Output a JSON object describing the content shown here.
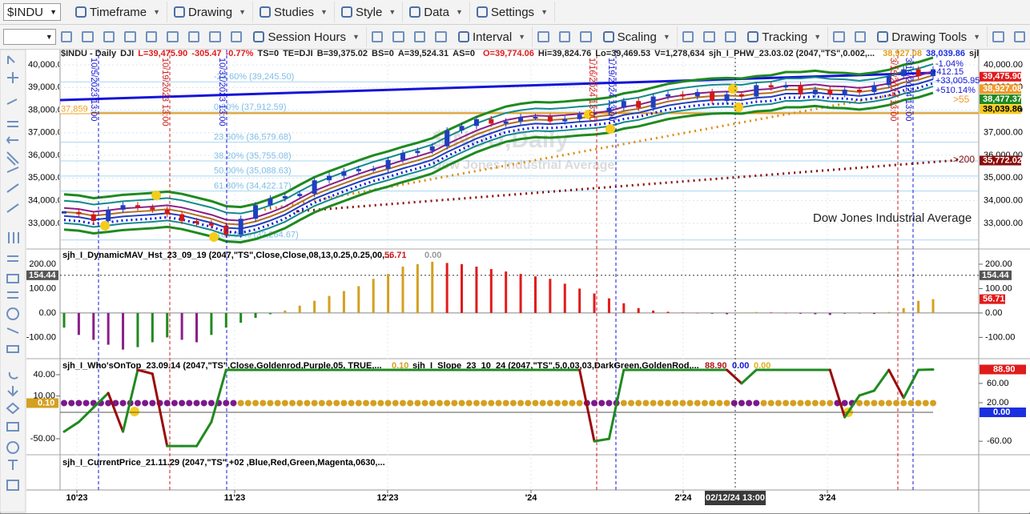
{
  "toolbar": {
    "symbol": "$INDU",
    "menu": [
      "Timeframe",
      "Drawing",
      "Studies",
      "Style",
      "Data",
      "Settings"
    ],
    "tools": [
      "Session Hours",
      "Interval",
      "Scaling",
      "Tracking",
      "Drawing Tools"
    ]
  },
  "header": {
    "title": "$INDU - Daily",
    "exchange": "DJI",
    "last": "L=39,475.90",
    "change": "-305.47",
    "change_pct": "-0.77%",
    "fields": [
      "TS=0",
      "TE=DJI",
      "B=39,375.02",
      "BS=0",
      "A=39,524.31",
      "AS=0"
    ],
    "open": "O=39,774.06",
    "fields2": [
      "Hi=39,824.76",
      "Lo=39,469.53",
      "V=1,278,634",
      "sjh_I_PHW_23.03.02 (2047,\"TS\",0.002,..."
    ],
    "study_values": [
      "38,927.08",
      "38,039.86"
    ],
    "more": "sjh_..."
  },
  "price": {
    "ylim": [
      31900,
      40670
    ],
    "yticks": [
      {
        "value": 33000,
        "label": "33,000.00"
      },
      {
        "value": 34000,
        "label": "34,000.00"
      },
      {
        "value": 35000,
        "label": "35,000.00"
      },
      {
        "value": 36000,
        "label": "36,000.00"
      },
      {
        "value": 37000,
        "label": "37,000.00"
      },
      {
        "value": 38000,
        "label": "38,000.00"
      },
      {
        "value": 39000,
        "label": "39,000.00"
      },
      {
        "value": 40000,
        "label": "40,000.00"
      }
    ],
    "closes": [
      33500,
      33400,
      33100,
      33600,
      33800,
      33700,
      33600,
      33400,
      33100,
      33000,
      32900,
      32500,
      33200,
      33800,
      34100,
      34200,
      34300,
      34900,
      35100,
      35300,
      35400,
      35400,
      35800,
      36100,
      36200,
      36400,
      37100,
      37300,
      37600,
      37400,
      37500,
      37700,
      37700,
      37500,
      37600,
      37800,
      37900,
      38100,
      38400,
      38100,
      38600,
      38700,
      38600,
      38800,
      38400,
      38700,
      38600,
      39100,
      39000,
      39100,
      38700,
      38900,
      38700,
      38900,
      38800,
      39100,
      39500,
      39800,
      39500,
      39800
    ],
    "level": {
      "value": 37859,
      "label": "37,859"
    },
    "fib": [
      {
        "value": 39245.5,
        "label": "-23.60% (39,245.50)"
      },
      {
        "value": 37912.59,
        "label": "0.00% (37,912.59)"
      },
      {
        "value": 36579.68,
        "label": "23.60% (36,579.68)"
      },
      {
        "value": 35755.08,
        "label": "38.20% (35,755.08)"
      },
      {
        "value": 35088.63,
        "label": "50.00% (35,088.63)"
      },
      {
        "value": 34422.17,
        "label": "61.80% (34,422.17)"
      },
      {
        "value": 32264.67,
        "label": "100.00% (32,264.67)"
      }
    ],
    "tags": [
      {
        "value": 39475.9,
        "label": "39,475.90",
        "color": "#e01b1b"
      },
      {
        "value": 38927.08,
        "label": "38,927.08",
        "color": "#f09a2a"
      },
      {
        "value": 38477.37,
        "label": "38,477.37",
        "color": "#1f8a1f"
      },
      {
        "value": 38039.86,
        "label": "38,039.86",
        "color": "#f5cc1c"
      },
      {
        "value": 35772.02,
        "label": "35,772.02",
        "color": "#8b0a0a"
      }
    ],
    "notes": [
      "-1.04%",
      "+412.15",
      "+33,005.95",
      "+510.14%",
      ">55",
      ">200"
    ],
    "markers": [
      "10/5/2023 13:00",
      "10/19/2023 13:00",
      "10/31/2023 13:00",
      "1/16/2024 13:00",
      "1/19/2024 13:00",
      "3/15/2024 13:00",
      "3/19/2024 13:00"
    ],
    "watermark": "$INDU,Daily",
    "watermark_sub": "Dow Jones Industrial Average",
    "caption": "Dow Jones Industrial Average"
  },
  "histogram": {
    "title": "sjh_I_DynamicMAV_Hst_23_09_19 (2047,\"TS\",Close,Close,08,13,0.25,0.25,00,...",
    "title_values": [
      "56.71",
      "0.00"
    ],
    "ylim": [
      -184,
      259
    ],
    "yticks": [
      {
        "value": -100,
        "label": "-100.00"
      },
      {
        "value": 0,
        "label": "0.00"
      },
      {
        "value": 100,
        "label": "100.00"
      },
      {
        "value": 200,
        "label": "200.00"
      }
    ],
    "values": [
      -60,
      -90,
      -110,
      -130,
      -150,
      -140,
      -120,
      -100,
      -110,
      -120,
      -90,
      -60,
      -40,
      -20,
      -5,
      10,
      30,
      50,
      70,
      90,
      110,
      140,
      160,
      190,
      200,
      210,
      205,
      200,
      190,
      180,
      170,
      160,
      150,
      140,
      120,
      100,
      80,
      60,
      40,
      20,
      10,
      5,
      2,
      0,
      -3,
      -5,
      2,
      4,
      2,
      0,
      -3,
      -5,
      -8,
      -3,
      -2,
      -4,
      4,
      20,
      50,
      56.71
    ],
    "level": {
      "value": 154.44,
      "label": "154.44"
    },
    "last": {
      "value": 56.71,
      "label": "56.71"
    }
  },
  "slope": {
    "who_title": "sjh_I_Who'sOnTop_23.09.14 (2047,\"TS\",Close,Goldenrod,Purple,05, TRUE,...",
    "who_value": "0.10",
    "title": "sjh_I_Slope_23_10_24 (2047,\"TS\",5,0,03,03,DarkGreen,GoldenRod,...",
    "title_values": [
      "88.90",
      "0.00",
      "0.00"
    ],
    "ylim": [
      -88,
      108
    ],
    "yticks": [
      {
        "value": 60,
        "label": "60.00"
      },
      {
        "value": 20,
        "label": "20.00"
      },
      {
        "value": -60,
        "label": "-60.00"
      }
    ],
    "left_ylim": [
      -72.5,
      60.25
    ],
    "left_yticks": [
      {
        "value": 40,
        "label": "40.00"
      },
      {
        "value": 10,
        "label": "10.00"
      },
      {
        "value": -50,
        "label": "-50.00"
      }
    ],
    "values": [
      -40,
      -20,
      10,
      40,
      -40,
      88,
      80,
      -70,
      -70,
      -70,
      -20,
      88,
      88,
      88,
      88,
      88,
      88,
      88,
      88,
      88,
      88,
      88,
      88,
      88,
      88,
      88,
      88,
      88,
      88,
      88,
      88,
      88,
      88,
      88,
      88,
      88,
      -60,
      -55,
      88,
      88,
      88,
      88,
      88,
      88,
      88,
      88,
      60,
      88,
      88,
      88,
      88,
      88,
      88,
      -10,
      35,
      45,
      88,
      30,
      88,
      88.9
    ],
    "tags": [
      {
        "value": 88.9,
        "label": "88.90",
        "color": "#e01b1b"
      },
      {
        "value": 0,
        "label": "0.00",
        "color": "#1a2fe0"
      }
    ],
    "left_tag": {
      "value": 0.1,
      "label": "0.10"
    }
  },
  "current_price": {
    "title": "sjh_I_CurrentPrice_21.11.29 (2047,\"TS\",+02 ,Blue,Red,Green,Magenta,0630,..."
  },
  "x_axis": {
    "labels": [
      "10'23",
      "11'23",
      "12'23",
      "'24",
      "2'24",
      "3'24"
    ],
    "cursor": "02/12/24 13:00"
  }
}
